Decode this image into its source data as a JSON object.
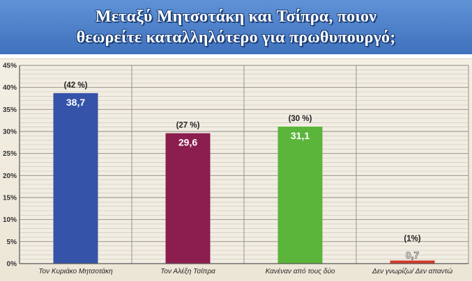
{
  "header": {
    "line1": "Μεταξύ Μητσοτάκη και Τσίπρα, ποιον",
    "line2": "θεωρείτε καταλληλότερο για πρωθυπουργό;"
  },
  "chart_data": {
    "type": "bar",
    "title": "Μεταξύ Μητσοτάκη και Τσίπρα, ποιον θεωρείτε καταλληλότερο για πρωθυπουργό;",
    "categories": [
      "Τον Κυριάκο Μητσοτάκη",
      "Τον Αλέξη Τσίπρα",
      "Κανέναν από τους δύο",
      "Δεν γνωρίζω/ Δεν απαντώ"
    ],
    "values": [
      38.7,
      29.6,
      31.1,
      0.7
    ],
    "value_labels": [
      "38,7",
      "29,6",
      "31,1",
      "0,7"
    ],
    "annotations": [
      "(42 %)",
      "(27 %)",
      "(30 %)",
      "(1%)"
    ],
    "colors": [
      "#3553a8",
      "#8c1d4f",
      "#5bb53b",
      "#d23a2a"
    ],
    "ylim": [
      0,
      45
    ],
    "yticks": [
      "0%",
      "5%",
      "10%",
      "15%",
      "20%",
      "25%",
      "30%",
      "35%",
      "40%",
      "45%"
    ],
    "grid": true,
    "xlabel": "",
    "ylabel": ""
  }
}
